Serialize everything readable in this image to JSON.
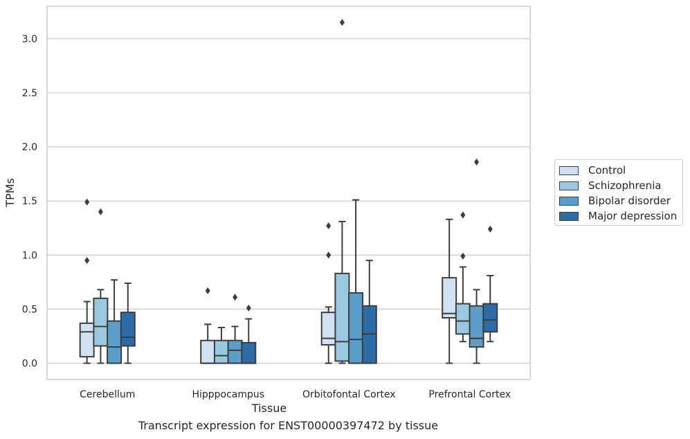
{
  "chart_data": {
    "type": "box",
    "caption": "Transcript expression for ENST00000397472 by tissue",
    "xlabel": "Tissue",
    "ylabel": "TPMs",
    "ylim": [
      -0.15,
      3.3
    ],
    "yticks": [
      "0.0",
      "0.5",
      "1.0",
      "1.5",
      "2.0",
      "2.5",
      "3.0"
    ],
    "grid": "horizontal",
    "legend_position": "right",
    "categories": [
      "Cerebellum",
      "Hipppocampus",
      "Orbitofontal Cortex",
      "Prefrontal Cortex"
    ],
    "series": [
      {
        "name": "Control",
        "color": "#d1e1f1",
        "boxes": [
          {
            "min": 0.0,
            "q1": 0.06,
            "median": 0.29,
            "q3": 0.37,
            "max": 0.57,
            "outliers": [
              0.95,
              1.49
            ]
          },
          {
            "min": 0.0,
            "q1": 0.0,
            "median": 0.0,
            "q3": 0.21,
            "max": 0.36,
            "outliers": [
              0.67
            ]
          },
          {
            "min": 0.0,
            "q1": 0.17,
            "median": 0.23,
            "q3": 0.47,
            "max": 0.52,
            "outliers": [
              1.0,
              1.27
            ]
          },
          {
            "min": 0.0,
            "q1": 0.42,
            "median": 0.46,
            "q3": 0.79,
            "max": 1.33,
            "outliers": []
          }
        ]
      },
      {
        "name": "Schizophrenia",
        "color": "#9ac8e0",
        "boxes": [
          {
            "min": 0.0,
            "q1": 0.16,
            "median": 0.34,
            "q3": 0.6,
            "max": 0.68,
            "outliers": [
              1.4
            ]
          },
          {
            "min": 0.0,
            "q1": 0.0,
            "median": 0.07,
            "q3": 0.21,
            "max": 0.33,
            "outliers": []
          },
          {
            "min": 0.0,
            "q1": 0.02,
            "median": 0.2,
            "q3": 0.83,
            "max": 1.31,
            "outliers": [
              3.15
            ]
          },
          {
            "min": 0.2,
            "q1": 0.27,
            "median": 0.39,
            "q3": 0.55,
            "max": 0.89,
            "outliers": [
              0.99,
              1.37
            ]
          }
        ]
      },
      {
        "name": "Bipolar disorder",
        "color": "#5a9ec9",
        "boxes": [
          {
            "min": 0.0,
            "q1": 0.0,
            "median": 0.15,
            "q3": 0.39,
            "max": 0.77,
            "outliers": []
          },
          {
            "min": 0.0,
            "q1": 0.0,
            "median": 0.12,
            "q3": 0.21,
            "max": 0.34,
            "outliers": [
              0.61
            ]
          },
          {
            "min": 0.0,
            "q1": 0.0,
            "median": 0.22,
            "q3": 0.65,
            "max": 1.51,
            "outliers": []
          },
          {
            "min": 0.0,
            "q1": 0.15,
            "median": 0.23,
            "q3": 0.53,
            "max": 0.68,
            "outliers": [
              1.86
            ]
          }
        ]
      },
      {
        "name": "Major depression",
        "color": "#2e6ca8",
        "boxes": [
          {
            "min": 0.0,
            "q1": 0.16,
            "median": 0.24,
            "q3": 0.47,
            "max": 0.74,
            "outliers": []
          },
          {
            "min": 0.0,
            "q1": 0.0,
            "median": 0.0,
            "q3": 0.19,
            "max": 0.41,
            "outliers": [
              0.51
            ]
          },
          {
            "min": 0.0,
            "q1": 0.0,
            "median": 0.27,
            "q3": 0.53,
            "max": 0.95,
            "outliers": []
          },
          {
            "min": 0.2,
            "q1": 0.29,
            "median": 0.4,
            "q3": 0.55,
            "max": 0.81,
            "outliers": [
              1.24
            ]
          }
        ]
      }
    ]
  }
}
